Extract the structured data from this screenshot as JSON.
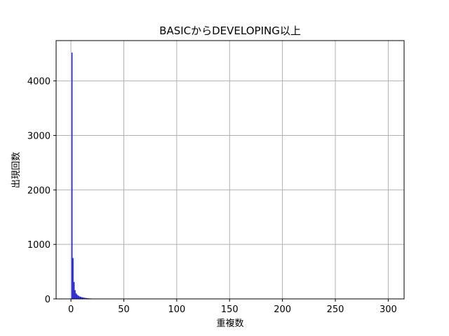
{
  "chart_data": {
    "type": "bar",
    "title": "BASICからDEVELOPING以上",
    "xlabel": "重複数",
    "ylabel": "出現回数",
    "xlim": [
      -14,
      315
    ],
    "ylim": [
      0,
      4740
    ],
    "xticks": [
      0,
      50,
      100,
      150,
      200,
      250,
      300
    ],
    "yticks": [
      0,
      1000,
      2000,
      3000,
      4000
    ],
    "grid": true,
    "legend": "none",
    "bar_color": "#0000cc",
    "x": [
      1,
      2,
      3,
      4,
      5,
      6,
      7,
      8,
      9,
      10,
      11,
      12,
      13,
      14,
      15,
      16,
      17,
      18,
      19,
      20,
      22,
      25,
      30
    ],
    "values": [
      4520,
      750,
      310,
      160,
      100,
      75,
      60,
      48,
      40,
      34,
      28,
      24,
      20,
      17,
      15,
      12,
      10,
      9,
      8,
      7,
      6,
      4,
      2
    ]
  }
}
